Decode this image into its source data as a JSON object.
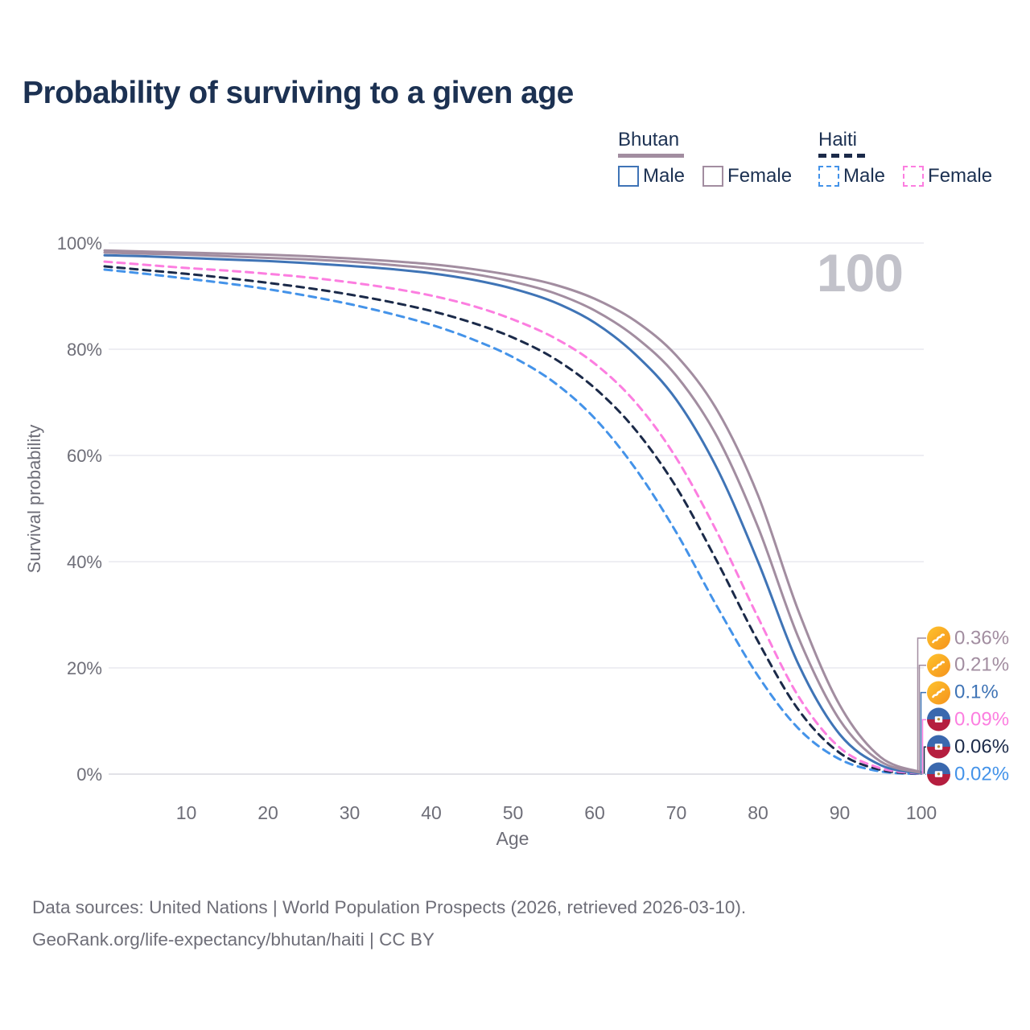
{
  "title": "Probability of surviving to a given age",
  "watermark_age": "100",
  "legend": {
    "groups": [
      {
        "id": "bhutan",
        "label": "Bhutan",
        "line_color": "#a28da0",
        "line_style": "solid",
        "items": [
          {
            "id": "bhutan-male",
            "label": "Male",
            "color": "#3f74b6",
            "style": "solid"
          },
          {
            "id": "bhutan-female",
            "label": "Female",
            "color": "#a28da0",
            "style": "solid"
          }
        ]
      },
      {
        "id": "haiti",
        "label": "Haiti",
        "line_color": "#1b2a49",
        "line_style": "dashed",
        "items": [
          {
            "id": "haiti-male",
            "label": "Male",
            "color": "#4493e9",
            "style": "dashed"
          },
          {
            "id": "haiti-female",
            "label": "Female",
            "color": "#fc7ee0",
            "style": "dashed"
          }
        ]
      }
    ]
  },
  "chart_data": {
    "type": "line",
    "title": "Probability of surviving to a given age",
    "xlabel": "Age",
    "ylabel": "Survival probability",
    "xlim": [
      0,
      100
    ],
    "ylim": [
      0,
      100
    ],
    "grid": "horizontal",
    "legend_position": "top-right",
    "x_ticks": [
      10,
      20,
      30,
      40,
      50,
      60,
      70,
      80,
      90,
      100
    ],
    "y_ticks": [
      {
        "value": 0,
        "label": "0%"
      },
      {
        "value": 20,
        "label": "20%"
      },
      {
        "value": 40,
        "label": "40%"
      },
      {
        "value": 60,
        "label": "60%"
      },
      {
        "value": 80,
        "label": "80%"
      },
      {
        "value": 100,
        "label": "100%"
      }
    ],
    "x": [
      0,
      5,
      10,
      15,
      20,
      25,
      30,
      35,
      40,
      45,
      50,
      55,
      60,
      65,
      70,
      75,
      80,
      85,
      90,
      95,
      100
    ],
    "series": [
      {
        "id": "haiti-male",
        "name": "Haiti Male",
        "country": "haiti",
        "sex": "male",
        "color": "#4493e9",
        "dashed": true,
        "end_label": "0.02%",
        "end_label_color": "#4493e9",
        "values": [
          95.0,
          94.2,
          93.3,
          92.4,
          91.3,
          90.0,
          88.5,
          86.7,
          84.6,
          81.9,
          78.5,
          73.8,
          67.0,
          57.5,
          45.5,
          31.5,
          18.5,
          8.5,
          2.8,
          0.5,
          0.02
        ]
      },
      {
        "id": "haiti-all",
        "name": "Haiti",
        "country": "haiti",
        "sex": "both",
        "color": "#1b2a49",
        "dashed": true,
        "end_label": "0.06%",
        "end_label_color": "#1b2a49",
        "values": [
          95.6,
          94.9,
          94.2,
          93.4,
          92.5,
          91.5,
          90.3,
          88.9,
          87.2,
          85.0,
          82.2,
          78.3,
          72.7,
          64.8,
          54.0,
          40.0,
          25.0,
          12.0,
          4.0,
          0.8,
          0.06
        ]
      },
      {
        "id": "haiti-female",
        "name": "Haiti Female",
        "country": "haiti",
        "sex": "female",
        "color": "#fc7ee0",
        "dashed": true,
        "end_label": "0.09%",
        "end_label_color": "#fc7ee0",
        "values": [
          96.5,
          95.9,
          95.3,
          94.8,
          94.2,
          93.5,
          92.6,
          91.5,
          90.1,
          88.2,
          85.6,
          82.2,
          77.3,
          70.0,
          59.5,
          45.5,
          29.5,
          14.5,
          5.0,
          1.1,
          0.09
        ]
      },
      {
        "id": "bhutan-male",
        "name": "Bhutan Male",
        "country": "bhutan",
        "sex": "male",
        "color": "#3f74b6",
        "dashed": false,
        "end_label": "0.1%",
        "end_label_color": "#3f74b6",
        "values": [
          97.7,
          97.5,
          97.2,
          96.9,
          96.6,
          96.2,
          95.7,
          95.1,
          94.3,
          93.1,
          91.4,
          88.9,
          85.0,
          79.0,
          70.5,
          57.5,
          40.0,
          20.5,
          7.5,
          1.7,
          0.1
        ]
      },
      {
        "id": "bhutan-all",
        "name": "Bhutan",
        "country": "bhutan",
        "sex": "both",
        "color": "#a28da0",
        "dashed": false,
        "end_label": "0.21%",
        "end_label_color": "#a28da0",
        "values": [
          98.2,
          98.0,
          97.8,
          97.5,
          97.2,
          96.9,
          96.5,
          95.9,
          95.2,
          94.2,
          92.7,
          90.6,
          87.3,
          82.3,
          75.0,
          63.5,
          46.5,
          25.5,
          10.2,
          2.4,
          0.21
        ]
      },
      {
        "id": "bhutan-female",
        "name": "Bhutan Female",
        "country": "bhutan",
        "sex": "female",
        "color": "#a28da0",
        "dashed": false,
        "end_label": "0.36%",
        "end_label_color": "#a28da0",
        "values": [
          98.6,
          98.4,
          98.2,
          98.0,
          97.8,
          97.5,
          97.1,
          96.6,
          96.0,
          95.1,
          93.9,
          92.2,
          89.5,
          85.3,
          78.8,
          68.5,
          52.5,
          30.5,
          13.0,
          3.2,
          0.36
        ]
      }
    ],
    "end_label_order": [
      "bhutan-female",
      "bhutan-all",
      "bhutan-male",
      "haiti-female",
      "haiti-all",
      "haiti-male"
    ]
  },
  "flags": {
    "bhutan": {
      "name": "bhutan-flag-icon",
      "colors": [
        "#fec32d",
        "#f5921c"
      ],
      "emblem": "white-dragon"
    },
    "haiti": {
      "name": "haiti-flag-icon",
      "colors": [
        "#3a68ae",
        "#b51e3f"
      ],
      "emblem": "white-panel"
    }
  },
  "colors": {
    "title": "#1c3152",
    "axis_text": "#6e6e78",
    "gridline": "#e9e9ef",
    "zero_gridline": "#d8d8df",
    "watermark": "#c2c2ca"
  },
  "footer": {
    "line1": "Data sources: United Nations | World Population Prospects (2026, retrieved 2026-03-10).",
    "line2": "GeoRank.org/life-expectancy/bhutan/haiti | CC BY"
  }
}
